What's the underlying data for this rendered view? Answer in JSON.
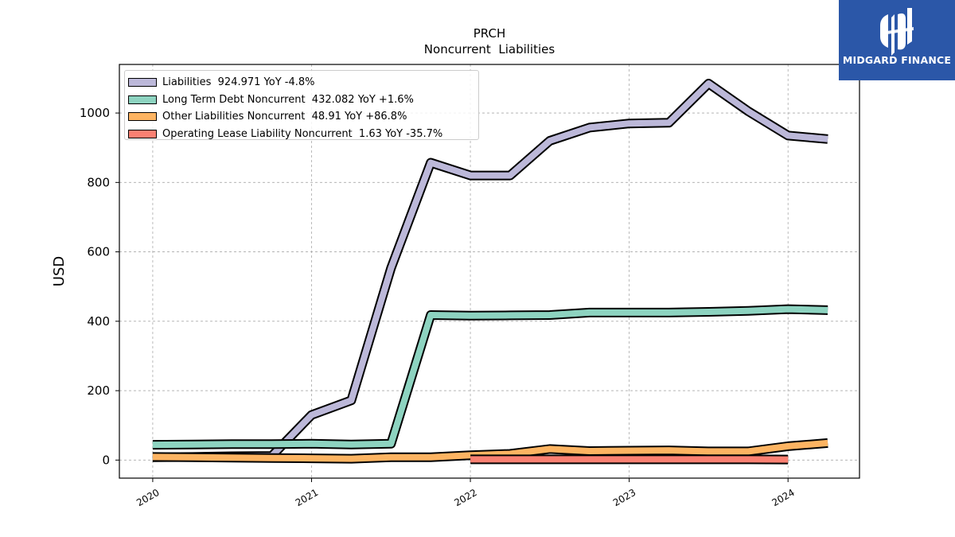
{
  "chart_data": {
    "type": "line",
    "title": "PRCH",
    "subtitle": "Noncurrent  Liabilities",
    "ylabel": "USD",
    "xlabel": "",
    "xlim": [
      2019.79,
      2024.45
    ],
    "ylim": [
      -52,
      1140
    ],
    "x_ticks": [
      2020,
      2021,
      2022,
      2023,
      2024
    ],
    "x_tick_labels": [
      "2020",
      "2021",
      "2022",
      "2023",
      "2024"
    ],
    "y_ticks": [
      0,
      200,
      400,
      600,
      800,
      1000
    ],
    "y_tick_labels": [
      "0",
      "200",
      "400",
      "600",
      "800",
      "1000"
    ],
    "grid": true,
    "legend_position": "top-left",
    "series": [
      {
        "name": "Liabilities  924.971 YoY -4.8%",
        "color": "#bcb8d9",
        "x": [
          2020.0,
          2020.25,
          2020.5,
          2020.75,
          2021.0,
          2021.25,
          2021.5,
          2021.75,
          2022.0,
          2022.25,
          2022.5,
          2022.75,
          2023.0,
          2023.25,
          2023.5,
          2023.75,
          2024.0,
          2024.25
        ],
        "values": [
          8,
          9,
          11,
          12,
          130,
          172,
          553,
          857,
          820,
          820,
          920,
          958,
          970,
          972,
          1085,
          1005,
          935,
          925
        ]
      },
      {
        "name": "Long Term Debt Noncurrent  432.082 YoY +1.6%",
        "color": "#8dd3c0",
        "x": [
          2020.0,
          2020.25,
          2020.5,
          2020.75,
          2021.0,
          2021.25,
          2021.5,
          2021.75,
          2022.0,
          2022.25,
          2022.5,
          2022.75,
          2023.0,
          2023.25,
          2023.5,
          2023.75,
          2024.0,
          2024.25
        ],
        "values": [
          44,
          45,
          46,
          46,
          47,
          45,
          47,
          418,
          416,
          417,
          418,
          425,
          425,
          425,
          427,
          430,
          435,
          432
        ]
      },
      {
        "name": "Other Liabilities Noncurrent  48.91 YoY +86.8%",
        "color": "#fdb462",
        "x": [
          2020.0,
          2020.25,
          2020.5,
          2020.75,
          2021.0,
          2021.25,
          2021.5,
          2021.75,
          2022.0,
          2022.25,
          2022.5,
          2022.75,
          2023.0,
          2023.25,
          2023.5,
          2023.75,
          2024.0,
          2024.25
        ],
        "values": [
          9,
          8,
          7,
          6,
          5,
          4,
          8,
          8,
          14,
          18,
          32,
          26,
          27,
          28,
          25,
          25,
          40,
          49
        ]
      },
      {
        "name": "Operating Lease Liability Noncurrent  1.63 YoY -35.7%",
        "color": "#fb8072",
        "x": [
          2022.0,
          2022.25,
          2022.5,
          2022.75,
          2023.0,
          2023.25,
          2023.5,
          2023.75,
          2024.0
        ],
        "values": [
          2,
          2,
          2,
          2,
          2,
          2,
          2,
          2,
          1.6
        ]
      }
    ]
  },
  "logo": {
    "text": "MIDGARD FINANCE"
  }
}
